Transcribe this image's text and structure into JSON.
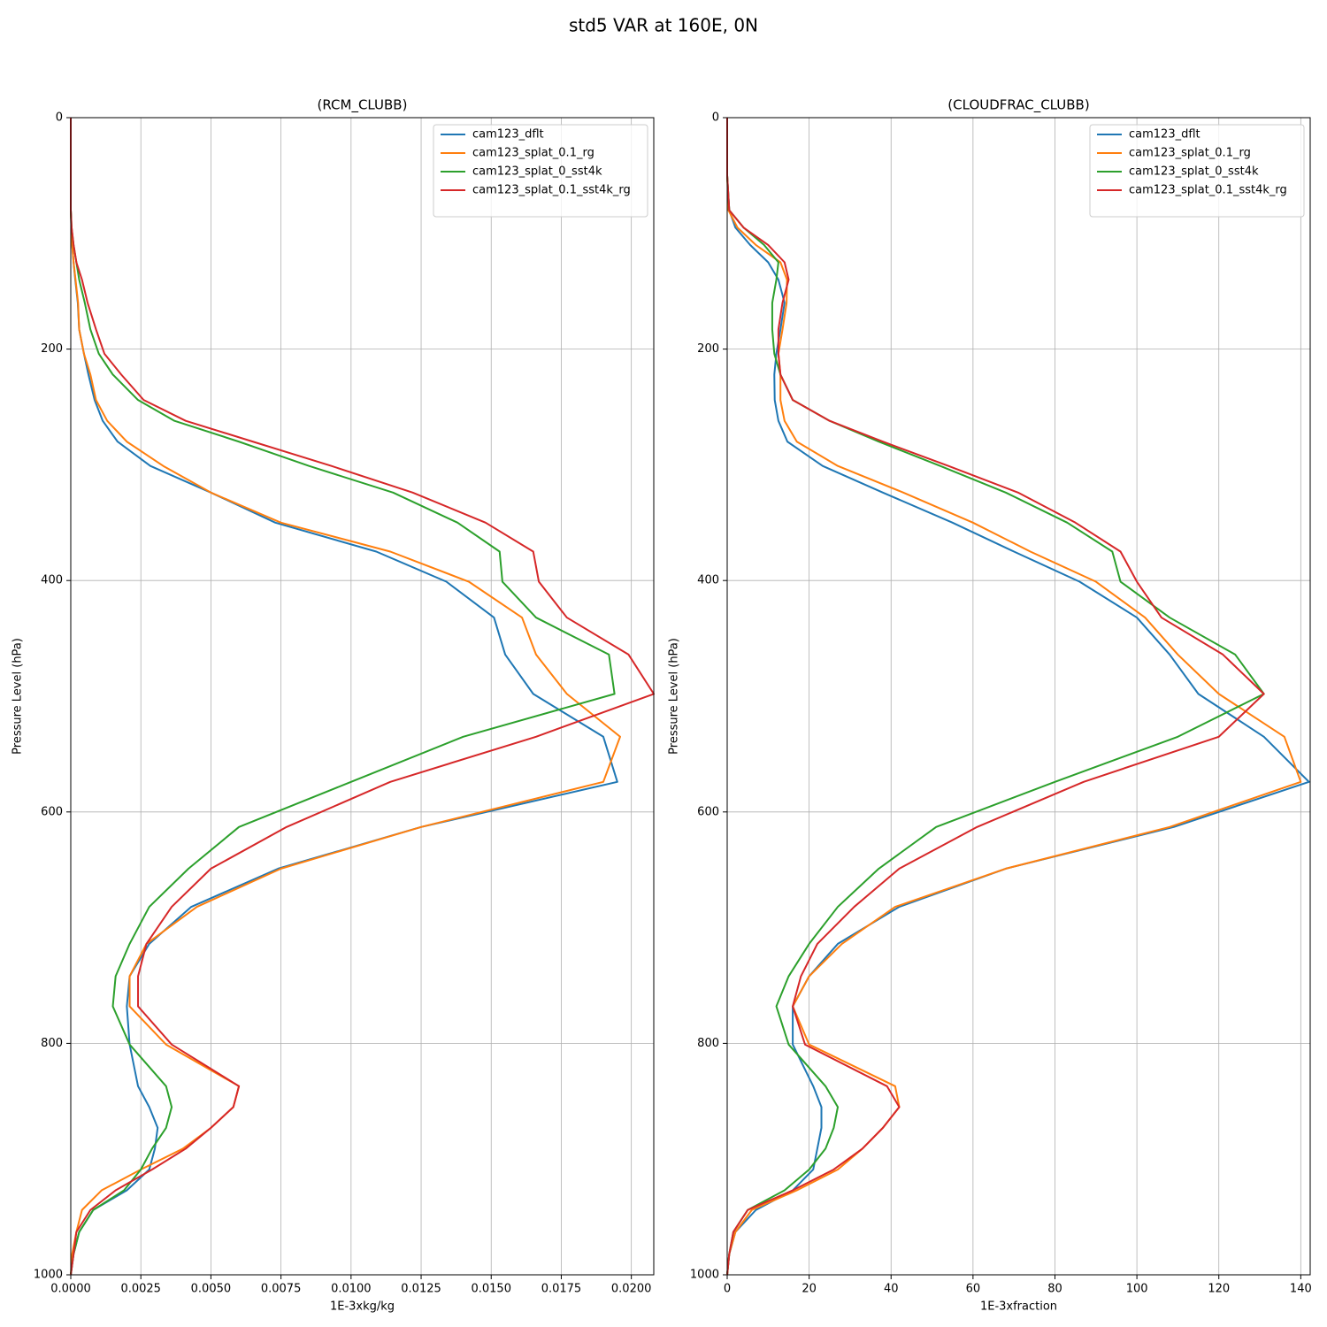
{
  "title": "std5 VAR at 160E, 0N",
  "chart_data": [
    {
      "type": "line",
      "title": "(RCM_CLUBB)",
      "xlabel": "1E-3xkg/kg",
      "ylabel": "Pressure Level (hPa)",
      "y": [
        0,
        50,
        80,
        95,
        110,
        125,
        140,
        160,
        183,
        204,
        222,
        244,
        262,
        280,
        301,
        324,
        350,
        375,
        401,
        432,
        464,
        498,
        535,
        574,
        613,
        649,
        682,
        714,
        742,
        768,
        801,
        837,
        855,
        873,
        891,
        909,
        927,
        944,
        963,
        982,
        1000
      ],
      "series": [
        {
          "name": "cam123_dflt",
          "color": "#1f77b4",
          "values": [
            0,
            0,
            0,
            2e-05,
            5e-05,
            0.0001,
            0.00016,
            0.00025,
            0.0003,
            0.00047,
            0.00063,
            0.00085,
            0.00114,
            0.00167,
            0.00284,
            0.005,
            0.0073,
            0.0109,
            0.0134,
            0.0151,
            0.0155,
            0.0165,
            0.019,
            0.0195,
            0.0125,
            0.0074,
            0.0043,
            0.0028,
            0.0021,
            0.002,
            0.0021,
            0.0024,
            0.0028,
            0.0031,
            0.003,
            0.0028,
            0.002,
            0.0008,
            0.0003,
            0.0001,
            0
          ]
        },
        {
          "name": "cam123_splat_0.1_rg",
          "color": "#ff7f0e",
          "values": [
            0,
            0,
            0,
            2e-05,
            5e-05,
            0.0001,
            0.00017,
            0.00026,
            0.0003,
            0.00047,
            0.0007,
            0.0009,
            0.0013,
            0.002,
            0.0033,
            0.005,
            0.0075,
            0.0114,
            0.0142,
            0.0161,
            0.0166,
            0.0177,
            0.0196,
            0.019,
            0.0125,
            0.0075,
            0.0045,
            0.0027,
            0.0021,
            0.0021,
            0.0034,
            0.006,
            0.0058,
            0.005,
            0.004,
            0.0025,
            0.0011,
            0.0004,
            0.0002,
            5e-05,
            0
          ]
        },
        {
          "name": "cam123_splat_0_sst4k",
          "color": "#2ca02c",
          "values": [
            0,
            0,
            0,
            3e-05,
            0.0001,
            0.0002,
            0.0003,
            0.0005,
            0.0007,
            0.001,
            0.0015,
            0.0024,
            0.0037,
            0.006,
            0.0085,
            0.0115,
            0.0138,
            0.0153,
            0.0154,
            0.0166,
            0.0192,
            0.0194,
            0.014,
            0.01,
            0.006,
            0.0042,
            0.0028,
            0.0021,
            0.0016,
            0.0015,
            0.0021,
            0.0034,
            0.0036,
            0.0034,
            0.0029,
            0.0025,
            0.0019,
            0.0008,
            0.0003,
            0.0001,
            0
          ]
        },
        {
          "name": "cam123_splat_0.1_sst4k_rg",
          "color": "#d62728",
          "values": [
            0,
            0,
            0,
            3e-05,
            0.0001,
            0.0002,
            0.0004,
            0.0006,
            0.0009,
            0.0012,
            0.0018,
            0.0026,
            0.0041,
            0.0065,
            0.0093,
            0.0122,
            0.0148,
            0.0165,
            0.0167,
            0.0177,
            0.0199,
            0.0208,
            0.0166,
            0.0114,
            0.0077,
            0.005,
            0.0036,
            0.0027,
            0.0024,
            0.0024,
            0.0036,
            0.006,
            0.0058,
            0.005,
            0.0041,
            0.0029,
            0.0016,
            0.0007,
            0.0002,
            0.0001,
            0
          ]
        }
      ],
      "xlim": [
        0,
        0.0208
      ],
      "ylim": [
        1000,
        0
      ],
      "xticks": [
        {
          "value": 0,
          "label": "0.0000"
        },
        {
          "value": 0.0025,
          "label": "0.0025"
        },
        {
          "value": 0.005,
          "label": "0.0050"
        },
        {
          "value": 0.0075,
          "label": "0.0075"
        },
        {
          "value": 0.01,
          "label": "0.0100"
        },
        {
          "value": 0.0125,
          "label": "0.0125"
        },
        {
          "value": 0.015,
          "label": "0.0150"
        },
        {
          "value": 0.0175,
          "label": "0.0175"
        },
        {
          "value": 0.02,
          "label": "0.0200"
        }
      ],
      "yticks": [
        0,
        200,
        400,
        600,
        800,
        1000
      ],
      "grid": true,
      "legend": "upper-right"
    },
    {
      "type": "line",
      "title": "(CLOUDFRAC_CLUBB)",
      "xlabel": "1E-3xfraction",
      "ylabel": "Pressure Level (hPa)",
      "y": [
        0,
        50,
        80,
        95,
        110,
        125,
        140,
        160,
        183,
        204,
        222,
        244,
        262,
        280,
        301,
        324,
        350,
        375,
        401,
        432,
        464,
        498,
        535,
        574,
        613,
        649,
        682,
        714,
        742,
        768,
        801,
        837,
        855,
        873,
        891,
        909,
        927,
        944,
        963,
        982,
        1000
      ],
      "series": [
        {
          "name": "cam123_dflt",
          "color": "#1f77b4",
          "values": [
            0,
            0,
            0.5,
            2,
            5.6,
            10,
            12.5,
            14,
            13,
            12,
            11.5,
            11.6,
            12.5,
            14.7,
            23.3,
            38,
            55,
            70,
            86,
            100,
            108,
            115,
            131,
            142,
            109,
            68,
            42,
            27,
            20,
            16,
            16,
            21,
            23,
            23,
            22,
            21,
            16,
            7,
            2,
            0.5,
            0
          ]
        },
        {
          "name": "cam123_splat_0.1_rg",
          "color": "#ff7f0e",
          "values": [
            0,
            0,
            0.3,
            2.5,
            7,
            13,
            14.6,
            14.5,
            13.5,
            12.5,
            13,
            13,
            14,
            17,
            27,
            43,
            60,
            74,
            90,
            102,
            110,
            120,
            136,
            140,
            108,
            68,
            41,
            28,
            20,
            16,
            20,
            41,
            42,
            38,
            33,
            27,
            17,
            6,
            2,
            0.5,
            0
          ]
        },
        {
          "name": "cam123_splat_0_sst4k",
          "color": "#2ca02c",
          "values": [
            0,
            0,
            0.5,
            4,
            9,
            12.5,
            12,
            11,
            11,
            11.5,
            13,
            16,
            25,
            37,
            52,
            68,
            83,
            94,
            96,
            108,
            124,
            131,
            110,
            80,
            51,
            37,
            27,
            20,
            15,
            12,
            15,
            24,
            27,
            26,
            24,
            20,
            14,
            5,
            1.5,
            0.5,
            0
          ]
        },
        {
          "name": "cam123_splat_0.1_sst4k_rg",
          "color": "#d62728",
          "values": [
            0,
            0,
            0.5,
            4,
            10,
            14,
            15,
            13.5,
            12.5,
            12.5,
            13,
            16,
            25,
            38,
            54,
            71,
            85,
            96,
            100,
            106,
            121,
            131,
            120,
            87,
            61,
            42,
            31,
            22,
            18,
            16,
            19,
            39,
            42,
            38,
            33,
            26,
            16,
            5,
            1.5,
            0.5,
            0
          ]
        }
      ],
      "xlim": [
        0,
        142.3
      ],
      "ylim": [
        1000,
        0
      ],
      "xticks": [
        0,
        20,
        40,
        60,
        80,
        100,
        120,
        140
      ],
      "yticks": [
        0,
        200,
        400,
        600,
        800,
        1000
      ],
      "grid": true,
      "legend": "upper-right"
    }
  ]
}
